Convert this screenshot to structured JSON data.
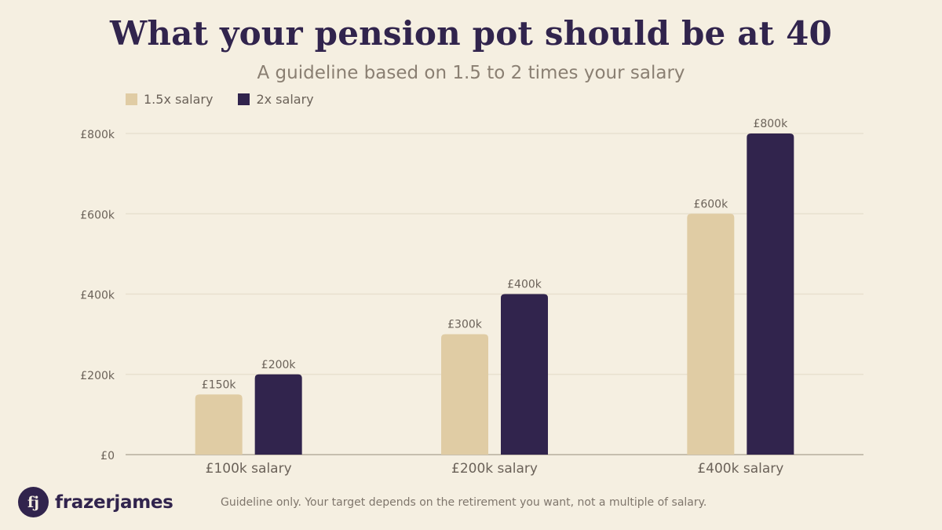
{
  "header": {
    "title": "What your pension pot should be at 40",
    "subtitle": "A guideline based on 1.5 to 2 times your salary"
  },
  "legend": [
    {
      "label": "1.5x salary",
      "color": "#e0cca4"
    },
    {
      "label": "2x salary",
      "color": "#31244d"
    }
  ],
  "chart_data": {
    "type": "bar",
    "categories": [
      "£100k salary",
      "£200k salary",
      "£400k salary"
    ],
    "series": [
      {
        "name": "1.5x salary",
        "values": [
          150,
          300,
          600
        ],
        "labels": [
          "£150k",
          "£300k",
          "£600k"
        ],
        "color": "#e0cca4"
      },
      {
        "name": "2x salary",
        "values": [
          200,
          400,
          800
        ],
        "labels": [
          "£200k",
          "£400k",
          "£800k"
        ],
        "color": "#31244d"
      }
    ],
    "ylim": [
      0,
      800
    ],
    "yticks": [
      0,
      200,
      400,
      600,
      800
    ],
    "ytick_labels": [
      "£0",
      "£200k",
      "£400k",
      "£600k",
      "£800k"
    ],
    "grid": true,
    "legend_position": "top-left",
    "title": "What your pension pot should be at 40",
    "subtitle": "A guideline based on 1.5 to 2 times your salary"
  },
  "footer": {
    "logo_mark": "fj",
    "logo_text": "frazerjames",
    "note": "Guideline only. Your target depends on the retirement you want, not a multiple of salary."
  },
  "colors": {
    "background": "#f5efe1",
    "grid": "#e8e0cf",
    "axis": "#b7ad9e",
    "label": "#6b6259"
  }
}
